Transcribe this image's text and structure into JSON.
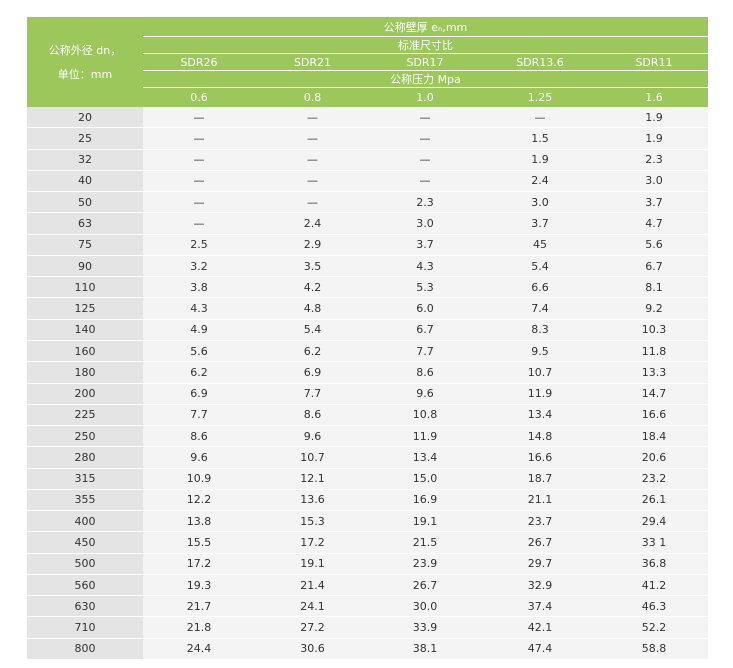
{
  "header": {
    "size_label": [
      "公称外径 dn，",
      "单位：mm"
    ],
    "wall": "公称壁厚 eₙ,mm",
    "sdr_title": "标准尺寸比",
    "sdr": [
      "SDR26",
      "SDR21",
      "SDR17",
      "SDR13.6",
      "SDR11"
    ],
    "pressure_title": "公称压力 Mpa",
    "pressure": [
      "0.6",
      "0.8",
      "1.0",
      "1.25",
      "1.6"
    ]
  },
  "table": {
    "rows": [
      [
        "20",
        "—",
        "—",
        "—",
        "—",
        "1.9"
      ],
      [
        "25",
        "—",
        "—",
        "—",
        "1.5",
        "1.9"
      ],
      [
        "32",
        "—",
        "—",
        "—",
        "1.9",
        "2.3"
      ],
      [
        "40",
        "—",
        "—",
        "—",
        "2.4",
        "3.0"
      ],
      [
        "50",
        "—",
        "—",
        "2.3",
        "3.0",
        "3.7"
      ],
      [
        "63",
        "—",
        "2.4",
        "3.0",
        "3.7",
        "4.7"
      ],
      [
        "75",
        "2.5",
        "2.9",
        "3.7",
        "45",
        "5.6"
      ],
      [
        "90",
        "3.2",
        "3.5",
        "4.3",
        "5.4",
        "6.7"
      ],
      [
        "110",
        "3.8",
        "4.2",
        "5.3",
        "6.6",
        "8.1"
      ],
      [
        "125",
        "4.3",
        "4.8",
        "6.0",
        "7.4",
        "9.2"
      ],
      [
        "140",
        "4.9",
        "5.4",
        "6.7",
        "8.3",
        "10.3"
      ],
      [
        "160",
        "5.6",
        "6.2",
        "7.7",
        "9.5",
        "11.8"
      ],
      [
        "180",
        "6.2",
        "6.9",
        "8.6",
        "10.7",
        "13.3"
      ],
      [
        "200",
        "6.9",
        "7.7",
        "9.6",
        "11.9",
        "14.7"
      ],
      [
        "225",
        "7.7",
        "8.6",
        "10.8",
        "13.4",
        "16.6"
      ],
      [
        "250",
        "8.6",
        "9.6",
        "11.9",
        "14.8",
        "18.4"
      ],
      [
        "280",
        "9.6",
        "10.7",
        "13.4",
        "16.6",
        "20.6"
      ],
      [
        "315",
        "10.9",
        "12.1",
        "15.0",
        "18.7",
        "23.2"
      ],
      [
        "355",
        "12.2",
        "13.6",
        "16.9",
        "21.1",
        "26.1"
      ],
      [
        "400",
        "13.8",
        "15.3",
        "19.1",
        "23.7",
        "29.4"
      ],
      [
        "450",
        "15.5",
        "17.2",
        "21.5",
        "26.7",
        "33 1"
      ],
      [
        "500",
        "17.2",
        "19.1",
        "23.9",
        "29.7",
        "36.8"
      ],
      [
        "560",
        "19.3",
        "21.4",
        "26.7",
        "32.9",
        "41.2"
      ],
      [
        "630",
        "21.7",
        "24.1",
        "30.0",
        "37.4",
        "46.3"
      ],
      [
        "710",
        "21.8",
        "27.2",
        "33.9",
        "42.1",
        "52.2"
      ],
      [
        "800",
        "24.4",
        "30.6",
        "38.1",
        "47.4",
        "58.8"
      ]
    ]
  }
}
